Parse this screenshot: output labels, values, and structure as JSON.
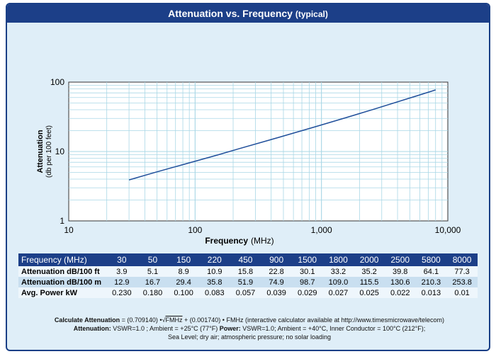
{
  "title": {
    "main": "Attenuation vs. Frequency",
    "sub": "(typical)"
  },
  "chart_data": {
    "type": "line",
    "xscale": "log",
    "yscale": "log",
    "xlim": [
      10,
      10000
    ],
    "ylim": [
      1,
      100
    ],
    "xlabel_bold": "Frequency",
    "xlabel_unit": "(MHz)",
    "ylabel_bold": "Attenuation",
    "ylabel_unit": "(db per 100 feet)",
    "x_ticks": [
      "10",
      "100",
      "1,000",
      "10,000"
    ],
    "y_ticks": [
      "1",
      "10",
      "100"
    ],
    "grid": true,
    "series": [
      {
        "x": [
          30,
          50,
          150,
          220,
          450,
          900,
          1500,
          1800,
          2000,
          2500,
          5800,
          8000
        ],
        "values": [
          3.9,
          5.1,
          8.9,
          10.9,
          15.8,
          22.8,
          30.1,
          33.2,
          35.2,
          39.8,
          64.1,
          77.3
        ],
        "color": "#1f4e9a"
      }
    ]
  },
  "table": {
    "header_label": "Frequency (MHz)",
    "frequencies": [
      "30",
      "50",
      "150",
      "220",
      "450",
      "900",
      "1500",
      "1800",
      "2000",
      "2500",
      "5800",
      "8000"
    ],
    "rows": [
      {
        "label": "Attenuation dB/100 ft",
        "values": [
          "3.9",
          "5.1",
          "8.9",
          "10.9",
          "15.8",
          "22.8",
          "30.1",
          "33.2",
          "35.2",
          "39.8",
          "64.1",
          "77.3"
        ]
      },
      {
        "label": "Attenuation dB/100 m",
        "values": [
          "12.9",
          "16.7",
          "29.4",
          "35.8",
          "51.9",
          "74.9",
          "98.7",
          "109.0",
          "115.5",
          "130.6",
          "210.3",
          "253.8"
        ]
      },
      {
        "label": "Avg. Power kW",
        "values": [
          "0.230",
          "0.180",
          "0.100",
          "0.083",
          "0.057",
          "0.039",
          "0.029",
          "0.027",
          "0.025",
          "0.022",
          "0.013",
          "0.01"
        ]
      }
    ]
  },
  "footer": {
    "calc_label": "Calculate Attenuation",
    "calc_formula_a": " = (0.709140) •",
    "calc_sqrt": "FMHz",
    "calc_formula_b": " + (0.001740) • FMHz (interactive calculator available at http://www.timesmicrowave/telecom)",
    "att_label": "Attenuation:",
    "att_text": " VSWR=1.0 ; Ambient = +25°C (77°F) ",
    "power_label": "Power:",
    "power_text": " VSWR=1.0; Ambient = +40°C, Inner Conductor = 100°C (212°F);",
    "line3": "Sea Level; dry air; atmospheric pressure; no solar loading"
  },
  "colors": {
    "brand": "#1c3f88",
    "panel": "#dfeef8",
    "line": "#1f4e9a",
    "grid": "#a9d7e6"
  }
}
